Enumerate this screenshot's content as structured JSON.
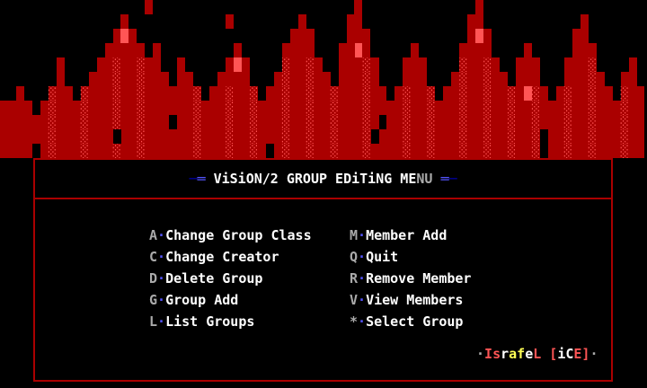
{
  "palette": {
    "black": "#000000",
    "dark_red": "#AA0000",
    "bright_red": "#FF5555",
    "white": "#FFFFFF",
    "grey": "#AAAAAA",
    "bright_blue": "#5555FF",
    "dark_blue": "#0000AA",
    "yellow": "#FFFF55"
  },
  "flame": {
    "legend": {
      " ": "blank",
      "r": "solid-dark-red-block",
      "R": "solid-bright-red-block",
      "a": "bright-red-shade-on-dark-red"
    },
    "rows": [
      "                  r                         r              r                    ",
      "               r            r        r     rr             rr            r       ",
      "              rRr                   rrr    rrr            rRr          rr       ",
      "             rrrrr r         r     rrrr   rrRr     r     rrrr    r     rrr      ",
      "       r    rrarrarr  r     rRr    arrar  rrrar   rrr    arrar  rrr   rrra    r ",
      "       r   rrrarrarrr rr   rrrr   rarrarr rrrar   rrr   rarrarr rrr   rrrar  rr ",
      "  r   arr arrrarrarrrrrra rrarra rrarrarrarrrarr rarra rrarrarrarRar rarrarr arr",
      "rrrr rarrrarrrarrarrrrrrarrrarrarrrarrarrarrrarrrrarrarrrarrarrarrarrrarrarrrarr",
      "rrrrrrarrrarrrarrarrr rrarrrarrarrrarrarrarrrar rrarrarrrarrarrarrarrrarrarrrarr",
      "rrrrrrarrrarrr rrarrrrrrarrrarrarrrarrarrarrra rrrarrarrrarrarrarra rrarrarrrarr",
      "rrrr rarrrarrrarrarrrrrrarrrarrar rarrarrarrrarrrrarrarrrarrarrarra rrarrarrrarr"
    ]
  },
  "title": {
    "segments": [
      {
        "text": "─",
        "color": "#0000AA"
      },
      {
        "text": "═",
        "color": "#5555FF"
      },
      {
        "text": " ",
        "color": "#FFFFFF"
      },
      {
        "text": "ViSiON/2 GROUP EDiTiNG ME",
        "color": "#FFFFFF"
      },
      {
        "text": "NU",
        "color": "#AAAAAA"
      },
      {
        "text": " ",
        "color": "#FFFFFF"
      },
      {
        "text": "═",
        "color": "#5555FF"
      },
      {
        "text": "─",
        "color": "#0000AA"
      }
    ]
  },
  "menu": {
    "separator": "·",
    "key_color": "#AAAAAA",
    "separator_color": "#5555FF",
    "label_color": "#FFFFFF",
    "left": [
      {
        "key": "A",
        "label": "Change Group Class"
      },
      {
        "key": "C",
        "label": "Change Creator"
      },
      {
        "key": "D",
        "label": "Delete Group"
      },
      {
        "key": "G",
        "label": "Group Add"
      },
      {
        "key": "L",
        "label": "List Groups"
      }
    ],
    "right": [
      {
        "key": "M",
        "label": "Member Add"
      },
      {
        "key": "Q",
        "label": "Quit"
      },
      {
        "key": "R",
        "label": "Remove Member"
      },
      {
        "key": "V",
        "label": "View Members"
      },
      {
        "key": "*",
        "label": "Select Group"
      }
    ]
  },
  "footer": {
    "segments": [
      {
        "text": "·",
        "color": "#AAAAAA"
      },
      {
        "text": "I",
        "color": "#FF5555"
      },
      {
        "text": "s",
        "color": "#FF5555"
      },
      {
        "text": "r",
        "color": "#FFFFFF"
      },
      {
        "text": "a",
        "color": "#FFFF55"
      },
      {
        "text": "f",
        "color": "#FFFF55"
      },
      {
        "text": "e",
        "color": "#FFFFFF"
      },
      {
        "text": "L",
        "color": "#FF5555"
      },
      {
        "text": " ",
        "color": "#FFFFFF"
      },
      {
        "text": "[",
        "color": "#FF5555"
      },
      {
        "text": "i",
        "color": "#FFFFFF"
      },
      {
        "text": "C",
        "color": "#FFFFFF"
      },
      {
        "text": "E",
        "color": "#FF5555"
      },
      {
        "text": "]",
        "color": "#FF5555"
      },
      {
        "text": "·",
        "color": "#AAAAAA"
      }
    ]
  }
}
